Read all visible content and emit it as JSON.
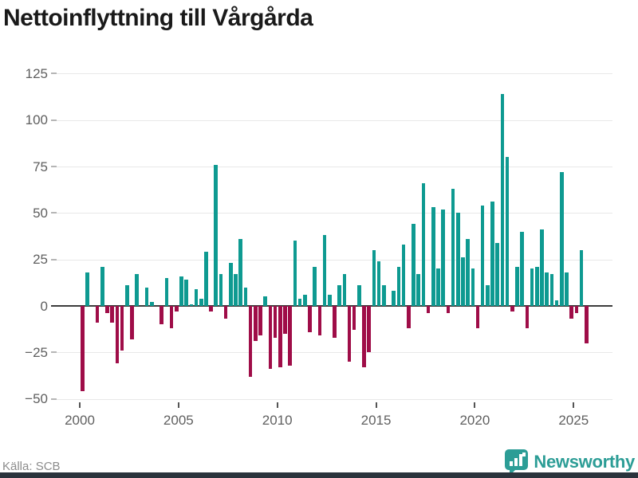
{
  "title": "Nettoinflyttning till Vårgårda",
  "footer": {
    "source_label": "Källa: SCB",
    "brand_name": "Newsworthy",
    "brand_color": "#2c9d96",
    "brand_icon": "bar-chart-pin-icon"
  },
  "chart_data": {
    "type": "bar",
    "title": "Nettoinflyttning till Vårgårda",
    "xlabel": "",
    "ylabel": "",
    "start_year": 2000,
    "start_quarter": 1,
    "frequency": "quarterly",
    "x_tick_years": [
      "2000",
      "2005",
      "2010",
      "2015",
      "2020",
      "2025"
    ],
    "y_ticks": [
      125,
      100,
      75,
      50,
      25,
      0,
      -25,
      -50
    ],
    "ylim": [
      -50,
      125
    ],
    "grid": "horizontal",
    "legend": "none",
    "positive_color": "#0e9a91",
    "negative_color": "#9f0d48",
    "values": [
      -46,
      18,
      0,
      -9,
      21,
      -4,
      -9,
      -31,
      -24,
      11,
      -18,
      17,
      0,
      10,
      2,
      0,
      -10,
      15,
      -12,
      -3,
      16,
      14,
      1,
      9,
      4,
      29,
      -3,
      76,
      17,
      -7,
      23,
      17,
      36,
      10,
      -38,
      -19,
      -16,
      5,
      -34,
      -17,
      -33,
      -15,
      -32,
      35,
      4,
      6,
      -14,
      21,
      -16,
      38,
      6,
      -17,
      11,
      17,
      -30,
      -13,
      11,
      -33,
      -25,
      30,
      24,
      11,
      0,
      8,
      21,
      33,
      -12,
      44,
      17,
      66,
      -4,
      53,
      20,
      52,
      -4,
      63,
      50,
      26,
      36,
      20,
      -12,
      54,
      11,
      56,
      34,
      114,
      80,
      -3,
      21,
      40,
      -12,
      20,
      21,
      41,
      18,
      17,
      3,
      72,
      18,
      -7,
      -4,
      30,
      -20
    ]
  }
}
